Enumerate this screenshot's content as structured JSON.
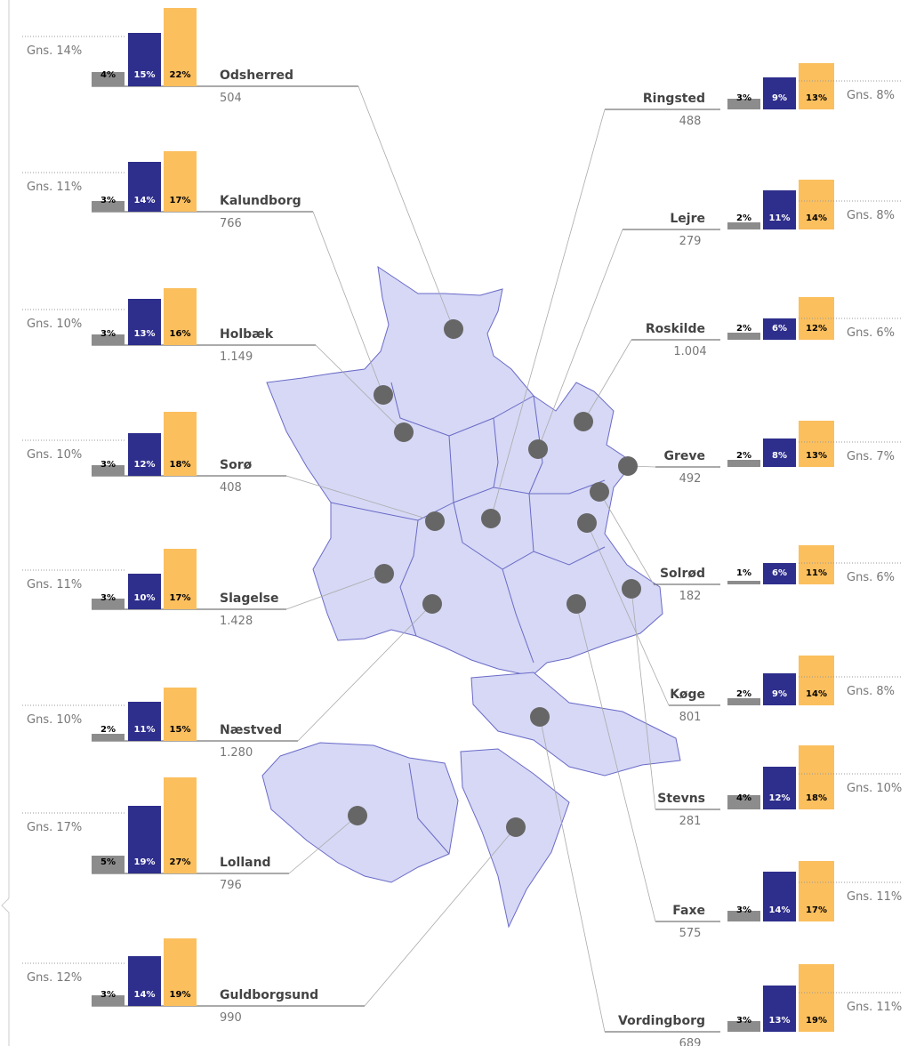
{
  "colors": [
    "#8c8c8c",
    "#2e2e8c",
    "#fbbf5e"
  ],
  "municipalities": [
    {
      "name": "Odsherred",
      "count": "504",
      "values": [
        4,
        15,
        22
      ],
      "value_labels": [
        "4%",
        "15%",
        "22%"
      ],
      "avg": 14,
      "avg_label": "Gns. 14%"
    },
    {
      "name": "Kalundborg",
      "count": "766",
      "values": [
        3,
        14,
        17
      ],
      "value_labels": [
        "3%",
        "14%",
        "17%"
      ],
      "avg": 11,
      "avg_label": "Gns. 11%"
    },
    {
      "name": "Holbæk",
      "count": "1.149",
      "values": [
        3,
        13,
        16
      ],
      "value_labels": [
        "3%",
        "13%",
        "16%"
      ],
      "avg": 10,
      "avg_label": "Gns. 10%"
    },
    {
      "name": "Sorø",
      "count": "408",
      "values": [
        3,
        12,
        18
      ],
      "value_labels": [
        "3%",
        "12%",
        "18%"
      ],
      "avg": 10,
      "avg_label": "Gns. 10%"
    },
    {
      "name": "Slagelse",
      "count": "1.428",
      "values": [
        3,
        10,
        17
      ],
      "value_labels": [
        "3%",
        "10%",
        "17%"
      ],
      "avg": 11,
      "avg_label": "Gns. 11%"
    },
    {
      "name": "Næstved",
      "count": "1.280",
      "values": [
        2,
        11,
        15
      ],
      "value_labels": [
        "2%",
        "11%",
        "15%"
      ],
      "avg": 10,
      "avg_label": "Gns. 10%"
    },
    {
      "name": "Lolland",
      "count": "796",
      "values": [
        5,
        19,
        27
      ],
      "value_labels": [
        "5%",
        "19%",
        "27%"
      ],
      "avg": 17,
      "avg_label": "Gns. 17%"
    },
    {
      "name": "Guldborgsund",
      "count": "990",
      "values": [
        3,
        14,
        19
      ],
      "value_labels": [
        "3%",
        "14%",
        "19%"
      ],
      "avg": 12,
      "avg_label": "Gns. 12%"
    },
    {
      "name": "Ringsted",
      "count": "488",
      "values": [
        3,
        9,
        13
      ],
      "value_labels": [
        "3%",
        "9%",
        "13%"
      ],
      "avg": 8,
      "avg_label": "Gns. 8%"
    },
    {
      "name": "Lejre",
      "count": "279",
      "values": [
        2,
        11,
        14
      ],
      "value_labels": [
        "2%",
        "11%",
        "14%"
      ],
      "avg": 8,
      "avg_label": "Gns. 8%"
    },
    {
      "name": "Roskilde",
      "count": "1.004",
      "values": [
        2,
        6,
        12
      ],
      "value_labels": [
        "2%",
        "6%",
        "12%"
      ],
      "avg": 6,
      "avg_label": "Gns. 6%"
    },
    {
      "name": "Greve",
      "count": "492",
      "values": [
        2,
        8,
        13
      ],
      "value_labels": [
        "2%",
        "8%",
        "13%"
      ],
      "avg": 7,
      "avg_label": "Gns. 7%"
    },
    {
      "name": "Solrød",
      "count": "182",
      "values": [
        1,
        6,
        11
      ],
      "value_labels": [
        "1%",
        "6%",
        "11%"
      ],
      "avg": 6,
      "avg_label": "Gns. 6%"
    },
    {
      "name": "Køge",
      "count": "801",
      "values": [
        2,
        9,
        14
      ],
      "value_labels": [
        "2%",
        "9%",
        "14%"
      ],
      "avg": 8,
      "avg_label": "Gns. 8%"
    },
    {
      "name": "Stevns",
      "count": "281",
      "values": [
        4,
        12,
        18
      ],
      "value_labels": [
        "4%",
        "12%",
        "18%"
      ],
      "avg": 10,
      "avg_label": "Gns. 10%"
    },
    {
      "name": "Faxe",
      "count": "575",
      "values": [
        3,
        14,
        17
      ],
      "value_labels": [
        "3%",
        "14%",
        "17%"
      ],
      "avg": 11,
      "avg_label": "Gns. 11%"
    },
    {
      "name": "Vordingborg",
      "count": "689",
      "values": [
        3,
        13,
        19
      ],
      "value_labels": [
        "3%",
        "13%",
        "19%"
      ],
      "avg": 11,
      "avg_label": "Gns. 11%"
    }
  ]
}
